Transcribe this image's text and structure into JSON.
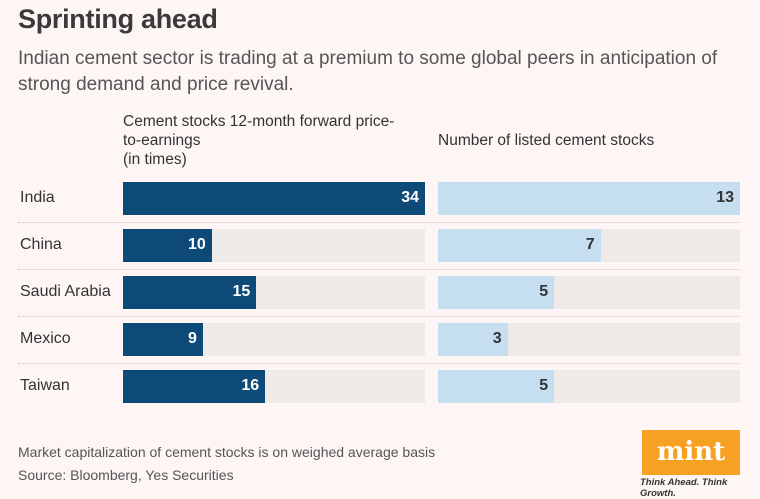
{
  "title": "Sprinting ahead",
  "subtitle": "Indian cement sector is trading at a premium to some global peers in anticipation of strong demand and price revival.",
  "footnote": "Market capitalization of cement stocks is on weighed average basis",
  "source": "Source: Bloomberg, Yes Securities",
  "logo": {
    "text": "mint",
    "tagline": "Think Ahead. Think Growth."
  },
  "colors": {
    "pe": "#0d4a78",
    "count": "#c5dff0",
    "track": "#eeeae8",
    "logo": "#f7a122"
  },
  "chart_data": {
    "type": "bar",
    "orientation": "horizontal",
    "categories": [
      "India",
      "China",
      "Saudi Arabia",
      "Mexico",
      "Taiwan"
    ],
    "series": [
      {
        "name": "Cement stocks 12-month forward price-to-earnings (in times)",
        "line1": "Cement stocks 12-month forward price-",
        "line2": "to-earnings",
        "line3": "(in times)",
        "values": [
          34,
          10,
          15,
          9,
          16
        ],
        "max": 34
      },
      {
        "name": "Number of listed cement stocks",
        "values": [
          13,
          7,
          5,
          3,
          5
        ],
        "max": 13
      }
    ]
  }
}
